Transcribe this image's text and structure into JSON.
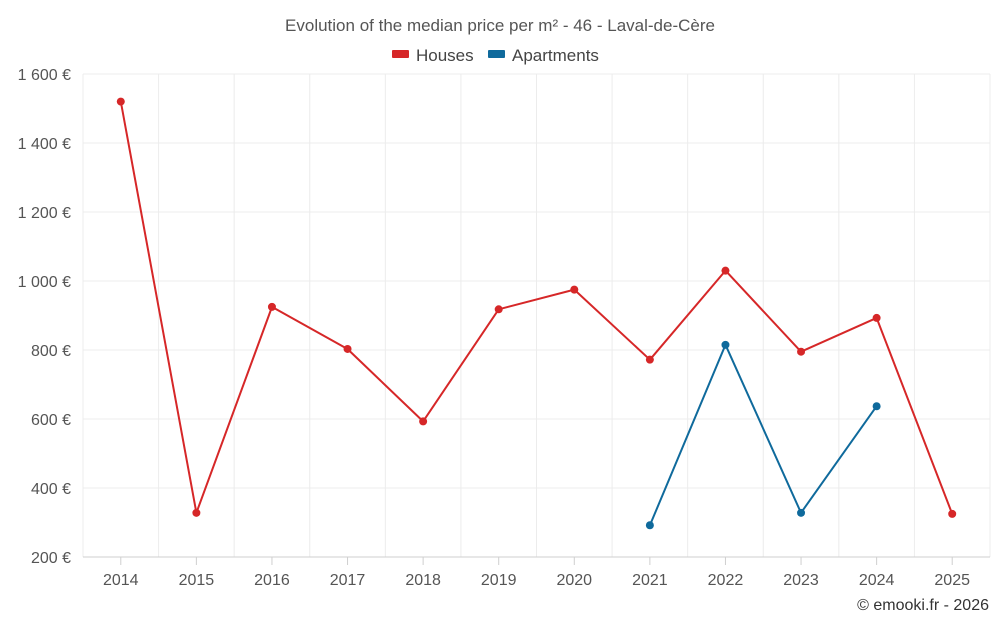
{
  "chart_data": {
    "type": "line",
    "title": "Evolution of the median price per m² - 46 - Laval-de-Cère",
    "categories": [
      "2014",
      "2015",
      "2016",
      "2017",
      "2018",
      "2019",
      "2020",
      "2021",
      "2022",
      "2023",
      "2024",
      "2025"
    ],
    "series": [
      {
        "name": "Houses",
        "color": "#d62728",
        "values": [
          1520,
          328,
          925,
          803,
          593,
          918,
          975,
          772,
          1030,
          795,
          893,
          325
        ]
      },
      {
        "name": "Apartments",
        "color": "#0f6a9c",
        "values": [
          null,
          null,
          null,
          null,
          null,
          null,
          null,
          292,
          815,
          328,
          637,
          null
        ]
      }
    ],
    "y_ticks": [
      200,
      400,
      600,
      800,
      1000,
      1200,
      1400,
      1600
    ],
    "y_tick_labels": [
      "200 €",
      "400 €",
      "600 €",
      "800 €",
      "1 000 €",
      "1 200 €",
      "1 400 €",
      "1 600 €"
    ],
    "ylim": [
      200,
      1600
    ],
    "xlabel": "",
    "ylabel": "",
    "legend_position": "top-center",
    "grid": true
  },
  "credit": "© emooki.fr - 2026"
}
